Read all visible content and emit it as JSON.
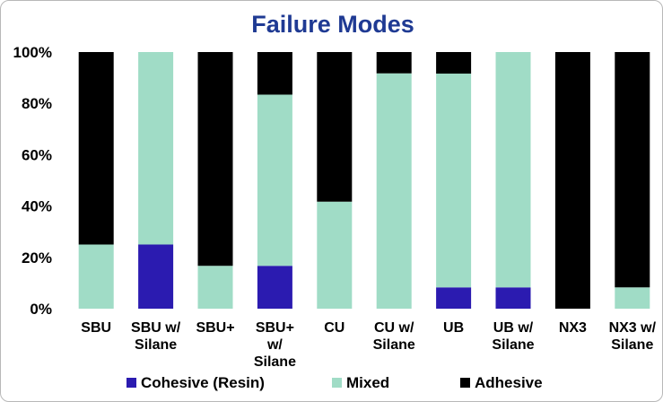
{
  "chart_data": {
    "type": "bar",
    "stacked": true,
    "title": "Failure Modes",
    "xlabel": "",
    "ylabel": "",
    "ylim": [
      0,
      100
    ],
    "y_ticks": [
      "0%",
      "20%",
      "40%",
      "60%",
      "80%",
      "100%"
    ],
    "grid": false,
    "legend_position": "bottom",
    "categories": [
      [
        "SBU"
      ],
      [
        "SBU w/",
        "Silane"
      ],
      [
        "SBU+"
      ],
      [
        "SBU+",
        "w/",
        "Silane"
      ],
      [
        "CU"
      ],
      [
        "CU w/",
        "Silane"
      ],
      [
        "UB"
      ],
      [
        "UB w/",
        "Silane"
      ],
      [
        "NX3"
      ],
      [
        "NX3 w/",
        "Silane"
      ]
    ],
    "series": [
      {
        "name": "Cohesive (Resin)",
        "color": "#2b1bb0",
        "values": [
          0,
          25,
          0,
          16.7,
          0,
          0,
          8.3,
          8.3,
          0,
          0
        ]
      },
      {
        "name": "Mixed",
        "color": "#a0dcc6",
        "values": [
          25,
          75,
          16.7,
          66.7,
          41.7,
          91.7,
          83.3,
          91.7,
          0,
          8.3
        ]
      },
      {
        "name": "Adhesive",
        "color": "#000000",
        "values": [
          75,
          0,
          83.3,
          16.6,
          58.3,
          8.3,
          8.4,
          0,
          100,
          91.7
        ]
      }
    ],
    "title_color": "#1f3a93"
  }
}
